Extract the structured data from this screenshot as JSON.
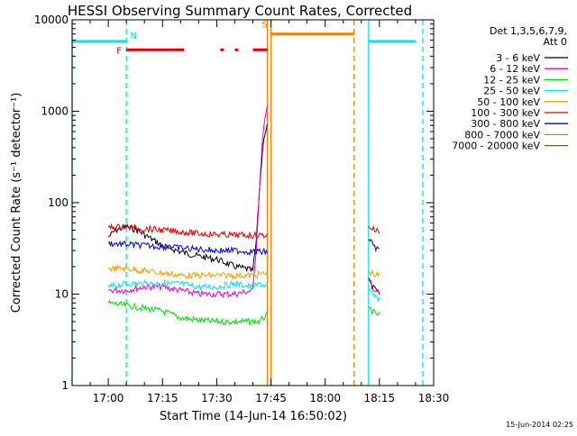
{
  "chart_data": {
    "type": "line",
    "title": "HESSI Observing Summary Count Rates, Corrected",
    "xlabel": "Start Time (14-Jun-14 16:50:02)",
    "ylabel": "Corrected Count Rate (s⁻¹ detector⁻¹)",
    "y_scale": "log",
    "ylim": [
      1,
      10000
    ],
    "xlim": [
      "16:50",
      "18:30"
    ],
    "x_ticks": [
      "17:00",
      "17:15",
      "17:30",
      "17:45",
      "18:00",
      "18:15",
      "18:30"
    ],
    "y_ticks": [
      "1",
      "10",
      "100",
      "1000",
      "10000"
    ],
    "timestamp": "15-Jun-2014 02:25",
    "legend": {
      "placement": "top-right",
      "header": [
        "Det 1,3,5,6,7,9,",
        "Att 0"
      ]
    },
    "series": [
      {
        "name": "3 - 6 keV",
        "color": "#000000",
        "segments": [
          {
            "x": [
              "17:00",
              "17:02",
              "17:05",
              "17:08",
              "17:12",
              "17:15",
              "17:20",
              "17:25",
              "17:30",
              "17:35",
              "17:38",
              "17:40",
              "17:41",
              "17:42",
              "17:43",
              "17:44"
            ],
            "y": [
              42,
              50,
              55,
              50,
              40,
              34,
              29,
              26,
              24,
              20,
              19,
              18,
              40,
              180,
              520,
              700
            ]
          },
          {
            "x": [
              "18:12",
              "18:13",
              "18:14",
              "18:15"
            ],
            "y": [
              15,
              12,
              11,
              10
            ]
          }
        ]
      },
      {
        "name": "6 - 12 keV",
        "color": "#e400e4",
        "segments": [
          {
            "x": [
              "17:00",
              "17:05",
              "17:10",
              "17:15",
              "17:20",
              "17:25",
              "17:30",
              "17:35",
              "17:40",
              "17:41",
              "17:42",
              "17:43",
              "17:44"
            ],
            "y": [
              11,
              11,
              12,
              12,
              11,
              10,
              10,
              10,
              11,
              35,
              200,
              700,
              1100
            ]
          },
          {
            "x": [
              "18:12",
              "18:13",
              "18:14",
              "18:15"
            ],
            "y": [
              14,
              12,
              11,
              10
            ]
          }
        ]
      },
      {
        "name": "12 - 25 keV",
        "color": "#00e000",
        "segments": [
          {
            "x": [
              "17:00",
              "17:05",
              "17:10",
              "17:15",
              "17:20",
              "17:25",
              "17:30",
              "17:35",
              "17:40",
              "17:42",
              "17:44"
            ],
            "y": [
              8,
              7.5,
              7,
              6.5,
              5.5,
              5.2,
              5,
              5,
              5,
              5,
              6
            ]
          },
          {
            "x": [
              "18:12",
              "18:13",
              "18:14",
              "18:15"
            ],
            "y": [
              7,
              6.5,
              6,
              6
            ]
          }
        ]
      },
      {
        "name": "25 - 50 keV",
        "color": "#00e6e6",
        "segments": [
          {
            "x": [
              "17:00",
              "17:05",
              "17:10",
              "17:15",
              "17:20",
              "17:25",
              "17:30",
              "17:35",
              "17:40",
              "17:42",
              "17:44"
            ],
            "y": [
              12,
              13,
              13,
              13,
              13,
              12,
              12,
              13,
              12,
              13,
              12
            ]
          },
          {
            "x": [
              "18:12",
              "18:13",
              "18:14",
              "18:15"
            ],
            "y": [
              11,
              10,
              9,
              9
            ]
          }
        ]
      },
      {
        "name": "50 - 100 keV",
        "color": "#f0a000",
        "segments": [
          {
            "x": [
              "17:00",
              "17:05",
              "17:10",
              "17:15",
              "17:20",
              "17:25",
              "17:30",
              "17:35",
              "17:40",
              "17:44"
            ],
            "y": [
              19,
              19,
              18,
              17,
              16,
              16,
              16,
              16,
              16,
              17
            ]
          },
          {
            "x": [
              "18:12",
              "18:13",
              "18:14",
              "18:15"
            ],
            "y": [
              18,
              17,
              16,
              16
            ]
          }
        ]
      },
      {
        "name": "100 - 300 keV",
        "color": "#e00000",
        "segments": [
          {
            "x": [
              "17:00",
              "17:05",
              "17:10",
              "17:15",
              "17:20",
              "17:25",
              "17:30",
              "17:35",
              "17:40",
              "17:44"
            ],
            "y": [
              54,
              54,
              52,
              50,
              48,
              46,
              45,
              44,
              44,
              44
            ]
          },
          {
            "x": [
              "18:12",
              "18:13",
              "18:14",
              "18:15"
            ],
            "y": [
              56,
              52,
              50,
              48
            ]
          }
        ]
      },
      {
        "name": "300 - 800 keV",
        "color": "#0000e0",
        "segments": [
          {
            "x": [
              "17:00",
              "17:05",
              "17:10",
              "17:15",
              "17:20",
              "17:25",
              "17:30",
              "17:35",
              "17:40",
              "17:44"
            ],
            "y": [
              36,
              35,
              34,
              33,
              32,
              31,
              30,
              30,
              29,
              29
            ]
          },
          {
            "x": [
              "18:12",
              "18:13",
              "18:14",
              "18:15"
            ],
            "y": [
              40,
              36,
              32,
              30
            ]
          }
        ]
      },
      {
        "name": "800 - 7000 keV",
        "color": "#c08030",
        "segments": []
      },
      {
        "name": "7000 - 20000 keV",
        "color": "#6a6a00",
        "segments": []
      }
    ],
    "markers": [
      {
        "label": "N",
        "color": "#00e6e6",
        "x": "17:05"
      },
      {
        "label": "F",
        "color": "#e00000",
        "x": "17:05"
      },
      {
        "label": "S",
        "color": "#f08000",
        "x": "17:45"
      }
    ],
    "bars": [
      {
        "color": "#00e6e6",
        "y": 5800,
        "x1": "16:50",
        "x2": "17:05"
      },
      {
        "color": "#00e6e6",
        "y": 5800,
        "x1": "18:12",
        "x2": "18:25"
      },
      {
        "color": "#e00000",
        "y": 4700,
        "x1": "17:05",
        "x2": "17:21"
      },
      {
        "color": "#e00000",
        "y": 4700,
        "x1": "17:31",
        "x2": "17:32"
      },
      {
        "color": "#e00000",
        "y": 4700,
        "x1": "17:35",
        "x2": "17:36"
      },
      {
        "color": "#e00000",
        "y": 4700,
        "x1": "17:40",
        "x2": "17:44"
      },
      {
        "color": "#f08000",
        "y": 7000,
        "x1": "17:45",
        "x2": "18:08"
      }
    ],
    "vlines": [
      {
        "x": "16:50",
        "color": "#00e6e6",
        "style": "solid"
      },
      {
        "x": "17:05",
        "color": "#00e6e6",
        "style": "dashed"
      },
      {
        "x": "17:44",
        "color": "#f08000",
        "style": "solid"
      },
      {
        "x": "17:45",
        "color": "#f08000",
        "style": "solid"
      },
      {
        "x": "18:08",
        "color": "#f08000",
        "style": "dashed"
      },
      {
        "x": "18:12",
        "color": "#00e6e6",
        "style": "solid"
      },
      {
        "x": "18:27",
        "color": "#00e6e6",
        "style": "dashed"
      }
    ]
  }
}
